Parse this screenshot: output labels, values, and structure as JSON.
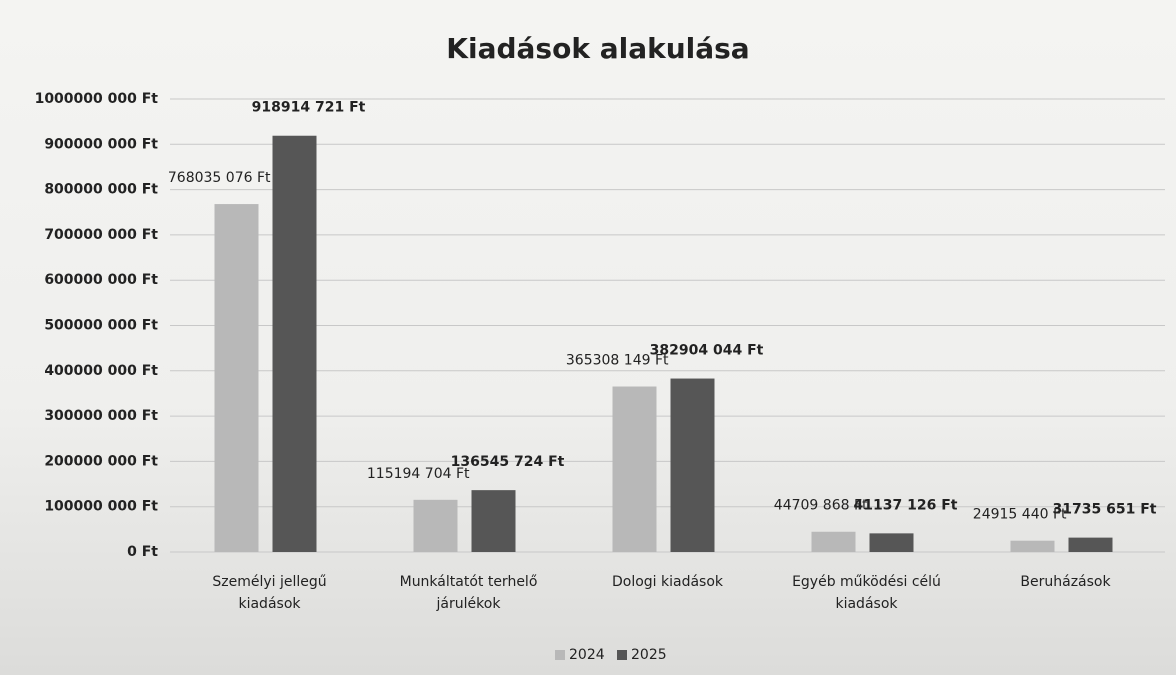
{
  "chart_data": {
    "type": "bar",
    "title": "Kiadások alakulása",
    "categories": [
      "Személyi jellegű kiadások",
      "Munkáltatót terhelő járulékok",
      "Dologi kiadások",
      "Egyéb működési célú kiadások",
      "Beruházások"
    ],
    "series": [
      {
        "name": "2024",
        "color": "#b8b8b8",
        "values": [
          768035076,
          115194704,
          365308149,
          44709868,
          24915440
        ],
        "value_labels": [
          "768035 076 Ft",
          "115194 704 Ft",
          "365308 149 Ft",
          "44709 868 Ft",
          "24915 440 Ft"
        ]
      },
      {
        "name": "2025",
        "color": "#565656",
        "values": [
          918914721,
          136545724,
          382904044,
          41137126,
          31735651
        ],
        "value_labels": [
          "918914 721 Ft",
          "136545 724 Ft",
          "382904 044 Ft",
          "41137 126 Ft",
          "31735 651 Ft"
        ]
      }
    ],
    "ylim": [
      0,
      1000000000
    ],
    "yticks": [
      {
        "value": 0,
        "label": "0 Ft"
      },
      {
        "value": 100000000,
        "label": "100000 000 Ft"
      },
      {
        "value": 200000000,
        "label": "200000 000 Ft"
      },
      {
        "value": 300000000,
        "label": "300000 000 Ft"
      },
      {
        "value": 400000000,
        "label": "400000 000 Ft"
      },
      {
        "value": 500000000,
        "label": "500000 000 Ft"
      },
      {
        "value": 600000000,
        "label": "600000 000 Ft"
      },
      {
        "value": 700000000,
        "label": "700000 000 Ft"
      },
      {
        "value": 800000000,
        "label": "800000 000 Ft"
      },
      {
        "value": 900000000,
        "label": "900000 000 Ft"
      },
      {
        "value": 1000000000,
        "label": "1000000 000 Ft"
      }
    ],
    "grid": true,
    "legend": "bottom"
  }
}
